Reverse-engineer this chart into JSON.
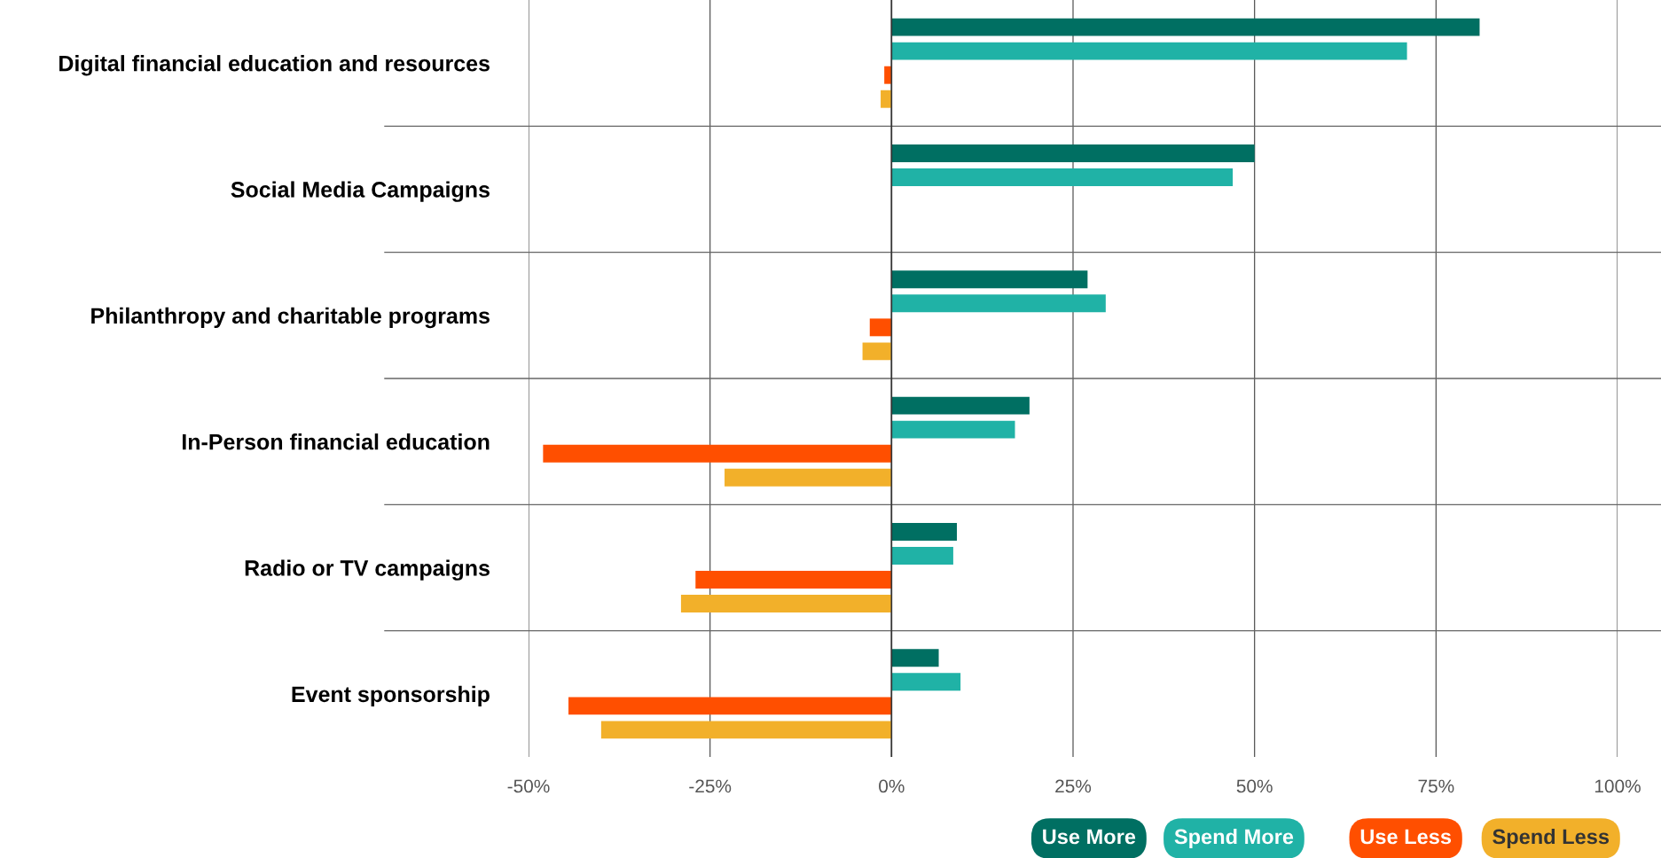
{
  "chart_data": {
    "type": "bar",
    "orientation": "horizontal",
    "categories": [
      "Digital financial education and resources",
      "Social Media Campaigns",
      "Philanthropy and charitable programs",
      "In-Person financial education",
      "Radio or TV campaigns",
      "Event sponsorship"
    ],
    "series": [
      {
        "name": "Use More",
        "color": "#006f62",
        "values": [
          81,
          50,
          27,
          19,
          9,
          6.5
        ]
      },
      {
        "name": "Spend More",
        "color": "#20b2a6",
        "values": [
          71,
          47,
          29.5,
          17,
          8.5,
          9.5
        ]
      },
      {
        "name": "Use Less",
        "color": "#ff4f00",
        "values": [
          -1,
          null,
          -3,
          -48,
          -27,
          -44.5
        ]
      },
      {
        "name": "Spend Less",
        "color": "#f2b02a",
        "values": [
          -1.5,
          null,
          -4,
          -23,
          -29,
          -40
        ]
      }
    ],
    "xlim": [
      -50,
      100
    ],
    "xticks": [
      {
        "value": -50,
        "label": "-50%"
      },
      {
        "value": -25,
        "label": "-25%"
      },
      {
        "value": 0,
        "label": "0%"
      },
      {
        "value": 25,
        "label": "25%"
      },
      {
        "value": 50,
        "label": "50%"
      },
      {
        "value": 75,
        "label": "75%"
      },
      {
        "value": 100,
        "label": "100%"
      }
    ],
    "grid": true,
    "legend": "bottom right"
  }
}
